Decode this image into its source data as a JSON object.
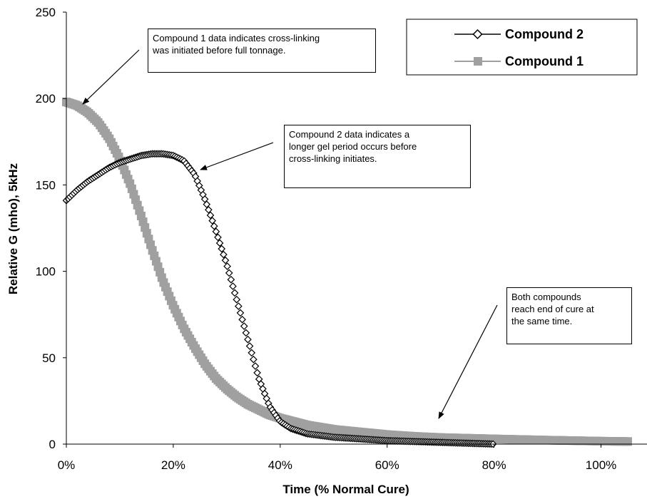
{
  "chart_data": {
    "type": "line",
    "xlabel": "Time (% Normal Cure)",
    "ylabel": "Relative G (mho), 5kHz",
    "xlim": [
      0,
      1.05
    ],
    "ylim": [
      0,
      250
    ],
    "x_ticks": [
      0,
      0.2,
      0.4,
      0.6,
      0.8,
      1.0
    ],
    "x_tick_labels": [
      "0%",
      "20%",
      "40%",
      "60%",
      "80%",
      "100%"
    ],
    "y_ticks": [
      0,
      50,
      100,
      150,
      200,
      250
    ],
    "y_tick_labels": [
      "0",
      "50",
      "100",
      "150",
      "200",
      "250"
    ],
    "grid": false,
    "legend_position": "top-right",
    "series": [
      {
        "name": "Compound 2",
        "color": "#000000",
        "marker": "diamond-open",
        "x": [
          0,
          0.02,
          0.04,
          0.06,
          0.08,
          0.1,
          0.12,
          0.14,
          0.16,
          0.18,
          0.2,
          0.22,
          0.24,
          0.26,
          0.28,
          0.3,
          0.32,
          0.34,
          0.36,
          0.38,
          0.4,
          0.42,
          0.45,
          0.5,
          0.55,
          0.6,
          0.65,
          0.7,
          0.75,
          0.8
        ],
        "y": [
          141,
          147,
          152,
          156,
          160,
          163,
          165,
          167,
          168,
          168,
          167,
          164,
          156,
          141,
          123,
          104,
          82,
          60,
          38,
          22,
          13,
          9,
          6,
          4,
          3,
          2,
          1.5,
          1,
          0.5,
          0
        ]
      },
      {
        "name": "Compound 1",
        "color": "#a0a0a0",
        "marker": "square-filled",
        "x": [
          0,
          0.02,
          0.04,
          0.06,
          0.08,
          0.1,
          0.12,
          0.14,
          0.16,
          0.18,
          0.2,
          0.22,
          0.24,
          0.26,
          0.28,
          0.3,
          0.32,
          0.34,
          0.36,
          0.38,
          0.4,
          0.45,
          0.5,
          0.55,
          0.6,
          0.65,
          0.7,
          0.8,
          0.9,
          1.0,
          1.05
        ],
        "y": [
          198,
          196,
          192,
          186,
          177,
          165,
          150,
          132,
          113,
          95,
          80,
          67,
          56,
          46,
          38,
          32,
          27,
          23,
          20,
          17,
          15,
          11,
          8.5,
          7,
          5.5,
          4.5,
          3.8,
          3,
          2.3,
          1.7,
          1.5
        ]
      }
    ],
    "annotations": [
      {
        "lines": [
          "Compound 1 data indicates cross-linking",
          "was initiated before full tonnage."
        ],
        "arrow_to": [
          0.03,
          196
        ]
      },
      {
        "lines": [
          "Compound 2 data indicates a",
          "longer gel period occurs before",
          "cross-linking initiates."
        ],
        "arrow_to": [
          0.31,
          162
        ]
      },
      {
        "lines": [
          "Both compounds",
          "reach end of cure at",
          "the same time."
        ],
        "arrow_to": [
          0.88,
          12
        ]
      }
    ]
  }
}
